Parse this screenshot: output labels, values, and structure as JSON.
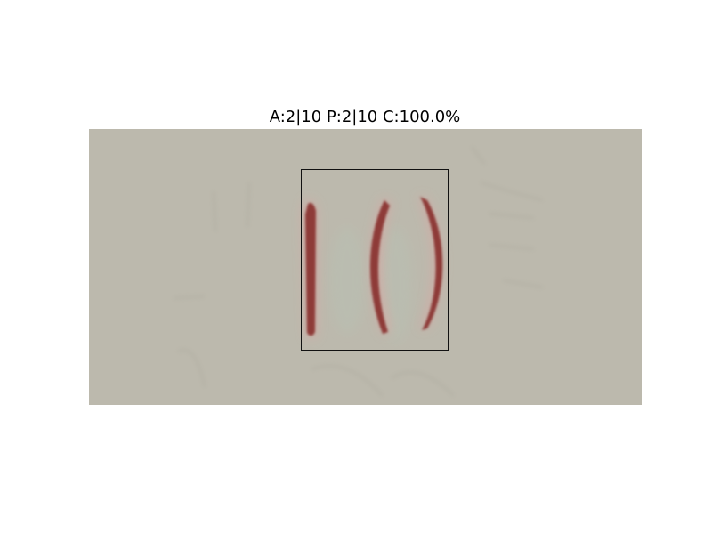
{
  "title": "A:2|10 P:2|10 C:100.0%",
  "colors": {
    "background": "#bcb9ad",
    "stroke": "#8e3a37",
    "glow": "#e2a3a0",
    "box": "#111111"
  }
}
